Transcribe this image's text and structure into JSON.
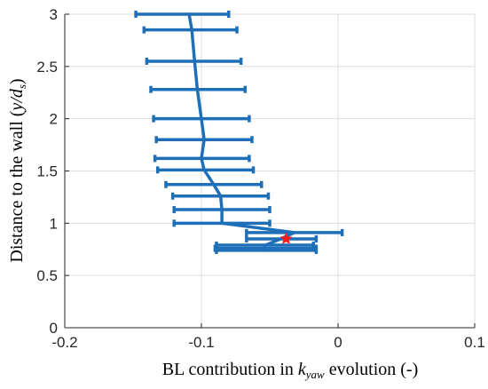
{
  "chart_data": {
    "type": "line",
    "title": "",
    "xlabel": {
      "prefix": "BL contribution in ",
      "math_base": "k",
      "math_sub": "yaw",
      "suffix": " evolution (-)"
    },
    "ylabel": {
      "prefix": "Distance to the wall (",
      "math": "y/d",
      "math_sub": "s",
      "suffix": ")"
    },
    "xlim": [
      -0.2,
      0.1
    ],
    "ylim": [
      0,
      3
    ],
    "x_ticks": [
      -0.2,
      -0.1,
      0,
      0.1
    ],
    "x_tick_labels": [
      "-0.2",
      "-0.1",
      "0",
      "0.1"
    ],
    "y_ticks": [
      0,
      0.5,
      1,
      1.5,
      2,
      2.5,
      3
    ],
    "y_tick_labels": [
      "0",
      "0.5",
      "1",
      "1.5",
      "2",
      "2.5",
      "3"
    ],
    "grid": true,
    "legend": "none",
    "colors": {
      "series": "#1f6fb8",
      "marker": "#ff1a1a",
      "grid": "#dedede",
      "axis": "#262626"
    },
    "series": [
      {
        "type": "errorbar",
        "points": [
          {
            "y": 3.0,
            "x": -0.109,
            "xmin": -0.148,
            "xmax": -0.08
          },
          {
            "y": 2.85,
            "x": -0.107,
            "xmin": -0.142,
            "xmax": -0.074
          },
          {
            "y": 2.55,
            "x": -0.105,
            "xmin": -0.14,
            "xmax": -0.071
          },
          {
            "y": 2.28,
            "x": -0.103,
            "xmin": -0.137,
            "xmax": -0.068
          },
          {
            "y": 2.0,
            "x": -0.1,
            "xmin": -0.135,
            "xmax": -0.065
          },
          {
            "y": 1.8,
            "x": -0.098,
            "xmin": -0.133,
            "xmax": -0.063
          },
          {
            "y": 1.62,
            "x": -0.1,
            "xmin": -0.134,
            "xmax": -0.065
          },
          {
            "y": 1.51,
            "x": -0.098,
            "xmin": -0.132,
            "xmax": -0.062
          },
          {
            "y": 1.37,
            "x": -0.091,
            "xmin": -0.126,
            "xmax": -0.056
          },
          {
            "y": 1.26,
            "x": -0.086,
            "xmin": -0.121,
            "xmax": -0.051
          },
          {
            "y": 1.13,
            "x": -0.085,
            "xmin": -0.12,
            "xmax": -0.05
          },
          {
            "y": 1.0,
            "x": -0.085,
            "xmin": -0.12,
            "xmax": -0.05
          },
          {
            "y": 0.91,
            "x": -0.032,
            "xmin": -0.067,
            "xmax": 0.003
          },
          {
            "y": 0.85,
            "x": -0.042,
            "xmin": -0.067,
            "xmax": -0.016
          },
          {
            "y": 0.79,
            "x": -0.053,
            "xmin": -0.089,
            "xmax": -0.018
          },
          {
            "y": 0.76,
            "x": -0.054,
            "xmin": -0.09,
            "xmax": -0.016
          },
          {
            "y": 0.74,
            "x": -0.054,
            "xmin": -0.089,
            "xmax": -0.016
          }
        ]
      }
    ],
    "marker_point": {
      "x": -0.038,
      "y": 0.85,
      "symbol": "star"
    }
  }
}
